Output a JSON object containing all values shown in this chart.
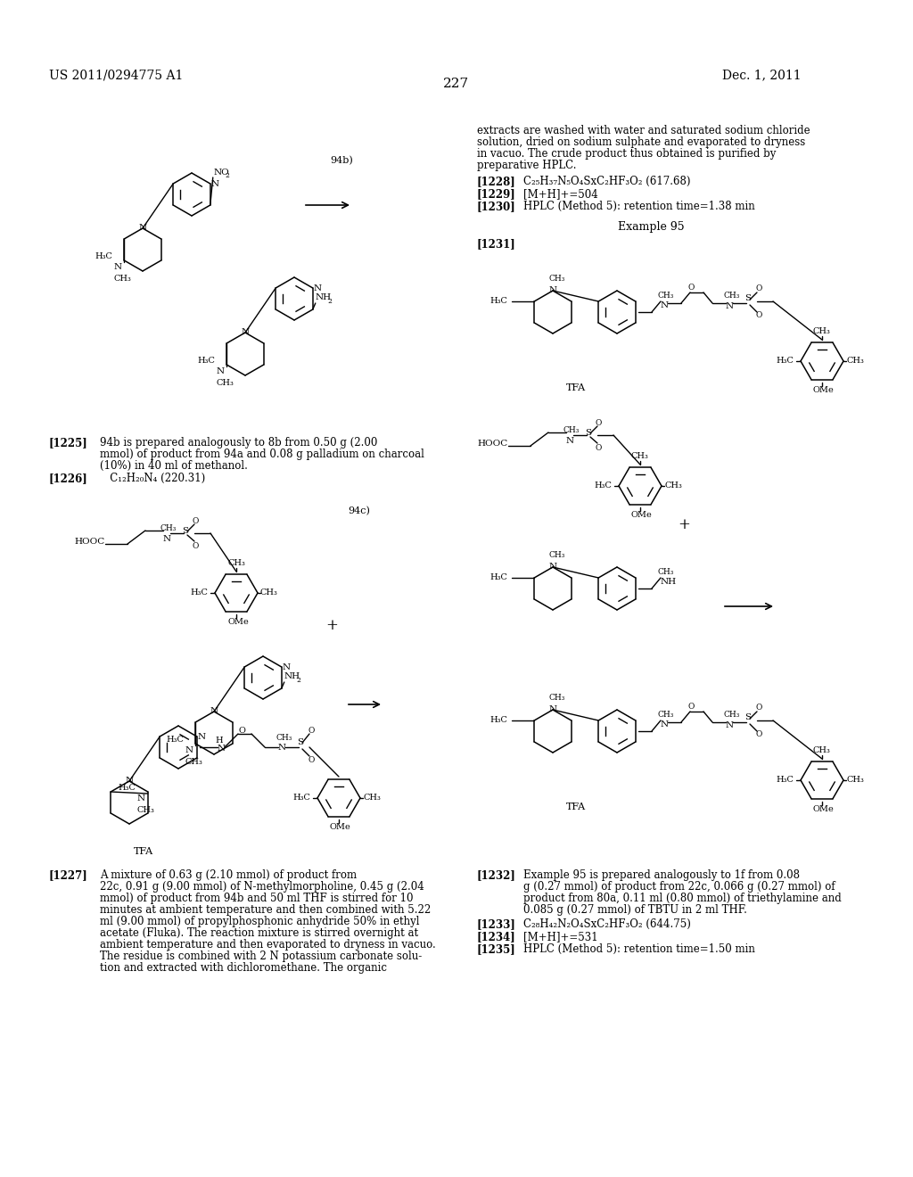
{
  "bg_color": "#ffffff",
  "header_left": "US 2011/0294775 A1",
  "header_right": "Dec. 1, 2011",
  "page_number": "227",
  "text_1225_label": "[1225]",
  "text_1225": "94b is prepared analogously to 8b from 0.50 g (2.00",
  "text_1225b": "mmol) of product from 94a and 0.08 g palladium on charcoal",
  "text_1225c": "(10%) in 40 ml of methanol.",
  "text_1226_label": "[1226]",
  "text_1226": "C₁₂H₂₀N₄ (220.31)",
  "text_1227_label": "[1227]",
  "text_1227a": "A mixture of 0.63 g (2.10 mmol) of product from",
  "text_1227b": "22c, 0.91 g (9.00 mmol) of N-methylmorpholine, 0.45 g (2.04",
  "text_1227c": "mmol) of product from 94b and 50 ml THF is stirred for 10",
  "text_1227d": "minutes at ambient temperature and then combined with 5.22",
  "text_1227e": "ml (9.00 mmol) of propylphosphonic anhydride 50% in ethyl",
  "text_1227f": "acetate (Fluka). The reaction mixture is stirred overnight at",
  "text_1227g": "ambient temperature and then evaporated to dryness in vacuo.",
  "text_1227h": "The residue is combined with 2 N potassium carbonate solu-",
  "text_1227i": "tion and extracted with dichloromethane. The organic",
  "text_right1": "extracts are washed with water and saturated sodium chloride",
  "text_right2": "solution, dried on sodium sulphate and evaporated to dryness",
  "text_right3": "in vacuo. The crude product thus obtained is purified by",
  "text_right4": "preparative HPLC.",
  "text_1228_label": "[1228]",
  "text_1228": "C₂₅H₃₇N₅O₄SxC₂HF₃O₂ (617.68)",
  "text_1229_label": "[1229]",
  "text_1229": "[M+H]+=504",
  "text_1230_label": "[1230]",
  "text_1230": "HPLC (Method 5): retention time=1.38 min",
  "text_ex95": "Example 95",
  "text_1231_label": "[1231]",
  "text_1232_label": "[1232]",
  "text_1232a": "Example 95 is prepared analogously to 1f from 0.08",
  "text_1232b": "g (0.27 mmol) of product from 22c, 0.066 g (0.27 mmol) of",
  "text_1232c": "product from 80a, 0.11 ml (0.80 mmol) of triethylamine and",
  "text_1232d": "0.085 g (0.27 mmol) of TBTU in 2 ml THF.",
  "text_1233_label": "[1233]",
  "text_1233": "C₂₈H₄₂N₂O₄SxC₂HF₃O₂ (644.75)",
  "text_1234_label": "[1234]",
  "text_1234": "[M+H]+=531",
  "text_1235_label": "[1235]",
  "text_1235": "HPLC (Method 5): retention time=1.50 min"
}
